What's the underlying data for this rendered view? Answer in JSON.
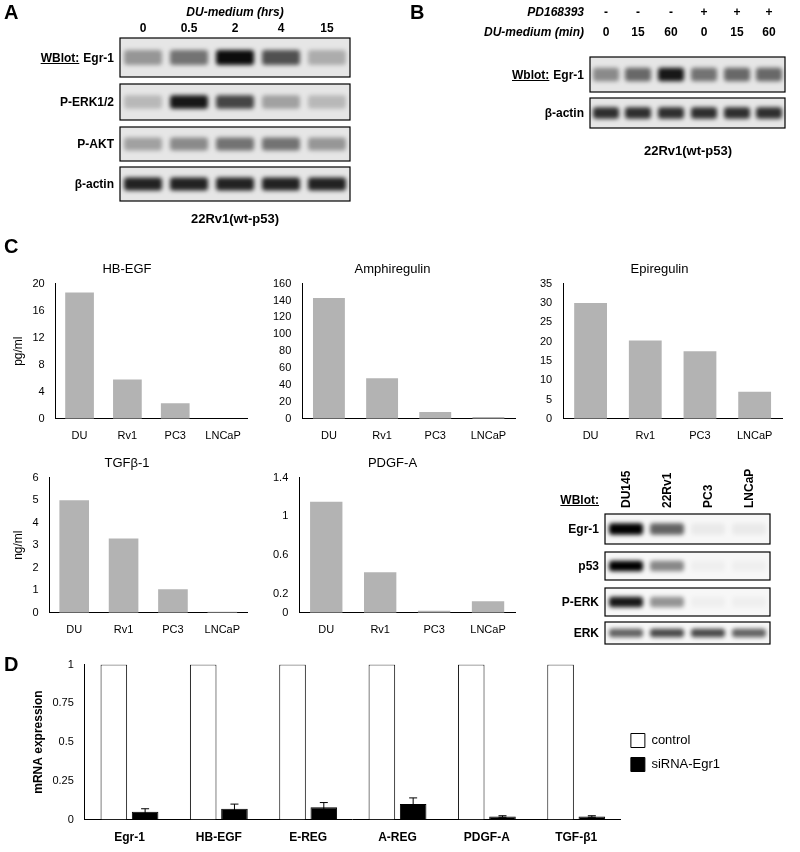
{
  "panel_labels": [
    "A",
    "B",
    "C",
    "D"
  ],
  "blots": [
    {
      "header": "DU-medium (hrs)",
      "lanes": [
        "0",
        "0.5",
        "2",
        "4",
        "15"
      ],
      "prefix": "WBlot:",
      "rows": [
        {
          "label": "Egr-1",
          "bands": [
            0.35,
            0.5,
            0.95,
            0.65,
            0.25
          ]
        },
        {
          "label": "P-ERK1/2",
          "bands": [
            0.2,
            0.9,
            0.7,
            0.3,
            0.2
          ]
        },
        {
          "label": "P-AKT",
          "bands": [
            0.3,
            0.4,
            0.5,
            0.5,
            0.35
          ]
        },
        {
          "label": "β-actin",
          "bands": [
            0.85,
            0.85,
            0.85,
            0.85,
            0.85
          ]
        }
      ],
      "caption": "22Rv1(wt-p53)"
    },
    {
      "conditions": [
        {
          "name": "PD168393",
          "levels": [
            "-",
            "-",
            "-",
            "+",
            "+",
            "+"
          ]
        },
        {
          "name": "DU-medium (min)",
          "levels": [
            "0",
            "15",
            "60",
            "0",
            "15",
            "60"
          ]
        }
      ],
      "prefix": "Wblot:",
      "rows": [
        {
          "label": "Egr-1",
          "bands": [
            0.4,
            0.55,
            0.9,
            0.5,
            0.55,
            0.55
          ]
        },
        {
          "label": "β-actin",
          "bands": [
            0.8,
            0.8,
            0.8,
            0.8,
            0.8,
            0.8
          ]
        }
      ],
      "caption": "22Rv1(wt-p53)"
    },
    {
      "prefix": "WBlot:",
      "lanes": [
        "DU145",
        "22Rv1",
        "PC3",
        "LNCaP"
      ],
      "rows": [
        {
          "label": "Egr-1",
          "bands": [
            1,
            0.6,
            0.05,
            0.05
          ]
        },
        {
          "label": "p53",
          "bands": [
            1,
            0.45,
            0.03,
            0.03
          ]
        },
        {
          "label": "P-ERK",
          "bands": [
            0.9,
            0.4,
            0.03,
            0.03
          ]
        },
        {
          "label": "ERK",
          "bands": [
            0.6,
            0.7,
            0.7,
            0.6
          ]
        }
      ]
    }
  ],
  "chart_data": [
    {
      "type": "bar",
      "title": "HB-EGF",
      "ylabel": "pg/ml",
      "categories": [
        "DU",
        "Rv1",
        "PC3",
        "LNCaP"
      ],
      "values": [
        18.7,
        5.8,
        2.3,
        0
      ],
      "color": "#b3b3b3",
      "ylim": [
        0,
        20
      ],
      "yticks": [
        0,
        4,
        8,
        12,
        16,
        20
      ],
      "grid": false
    },
    {
      "type": "bar",
      "title": "Amphiregulin",
      "categories": [
        "DU",
        "Rv1",
        "PC3",
        "LNCaP"
      ],
      "values": [
        143,
        48,
        8,
        2
      ],
      "color": "#b3b3b3",
      "ylim": [
        0,
        160
      ],
      "yticks": [
        0,
        20,
        40,
        60,
        80,
        100,
        120,
        140,
        160
      ],
      "grid": false
    },
    {
      "type": "bar",
      "title": "Epiregulin",
      "categories": [
        "DU",
        "Rv1",
        "PC3",
        "LNCaP"
      ],
      "values": [
        30,
        20.3,
        17.5,
        7
      ],
      "color": "#b3b3b3",
      "ylim": [
        0,
        35
      ],
      "yticks": [
        0,
        5,
        10,
        15,
        20,
        25,
        30,
        35
      ],
      "grid": false
    },
    {
      "type": "bar",
      "title": "TGFβ-1",
      "ylabel": "ng/ml",
      "categories": [
        "DU",
        "Rv1",
        "PC3",
        "LNCaP"
      ],
      "values": [
        5.0,
        3.3,
        1.05,
        0.05
      ],
      "color": "#b3b3b3",
      "ylim": [
        0,
        6
      ],
      "yticks": [
        0,
        1,
        2,
        3,
        4,
        5,
        6
      ],
      "grid": false
    },
    {
      "type": "bar",
      "title": "PDGF-A",
      "categories": [
        "DU",
        "Rv1",
        "PC3",
        "LNCaP"
      ],
      "values": [
        1.15,
        0.42,
        0.02,
        0.12
      ],
      "color": "#b3b3b3",
      "ylim": [
        0,
        1.4
      ],
      "yticks": [
        0,
        0.2,
        0.6,
        1,
        1.4
      ],
      "grid": false
    },
    {
      "type": "bar",
      "ylabel": "mRNA expression",
      "categories": [
        "Egr-1",
        "HB-EGF",
        "E-REG",
        "A-REG",
        "PDGF-A",
        "TGF-β1"
      ],
      "series": [
        {
          "name": "control",
          "color": "#ffffff",
          "values": [
            1,
            1,
            1,
            1,
            1,
            1
          ]
        },
        {
          "name": "siRNA-Egr1",
          "color": "#000000",
          "values": [
            0.05,
            0.07,
            0.08,
            0.1,
            0.02,
            0.02
          ],
          "errors": [
            0.02,
            0.03,
            0.03,
            0.04,
            0.005,
            0.005
          ]
        }
      ],
      "ylim": [
        0,
        1
      ],
      "yticks": [
        0,
        0.25,
        0.5,
        0.75,
        1
      ],
      "grid": false,
      "legend": "right"
    }
  ]
}
